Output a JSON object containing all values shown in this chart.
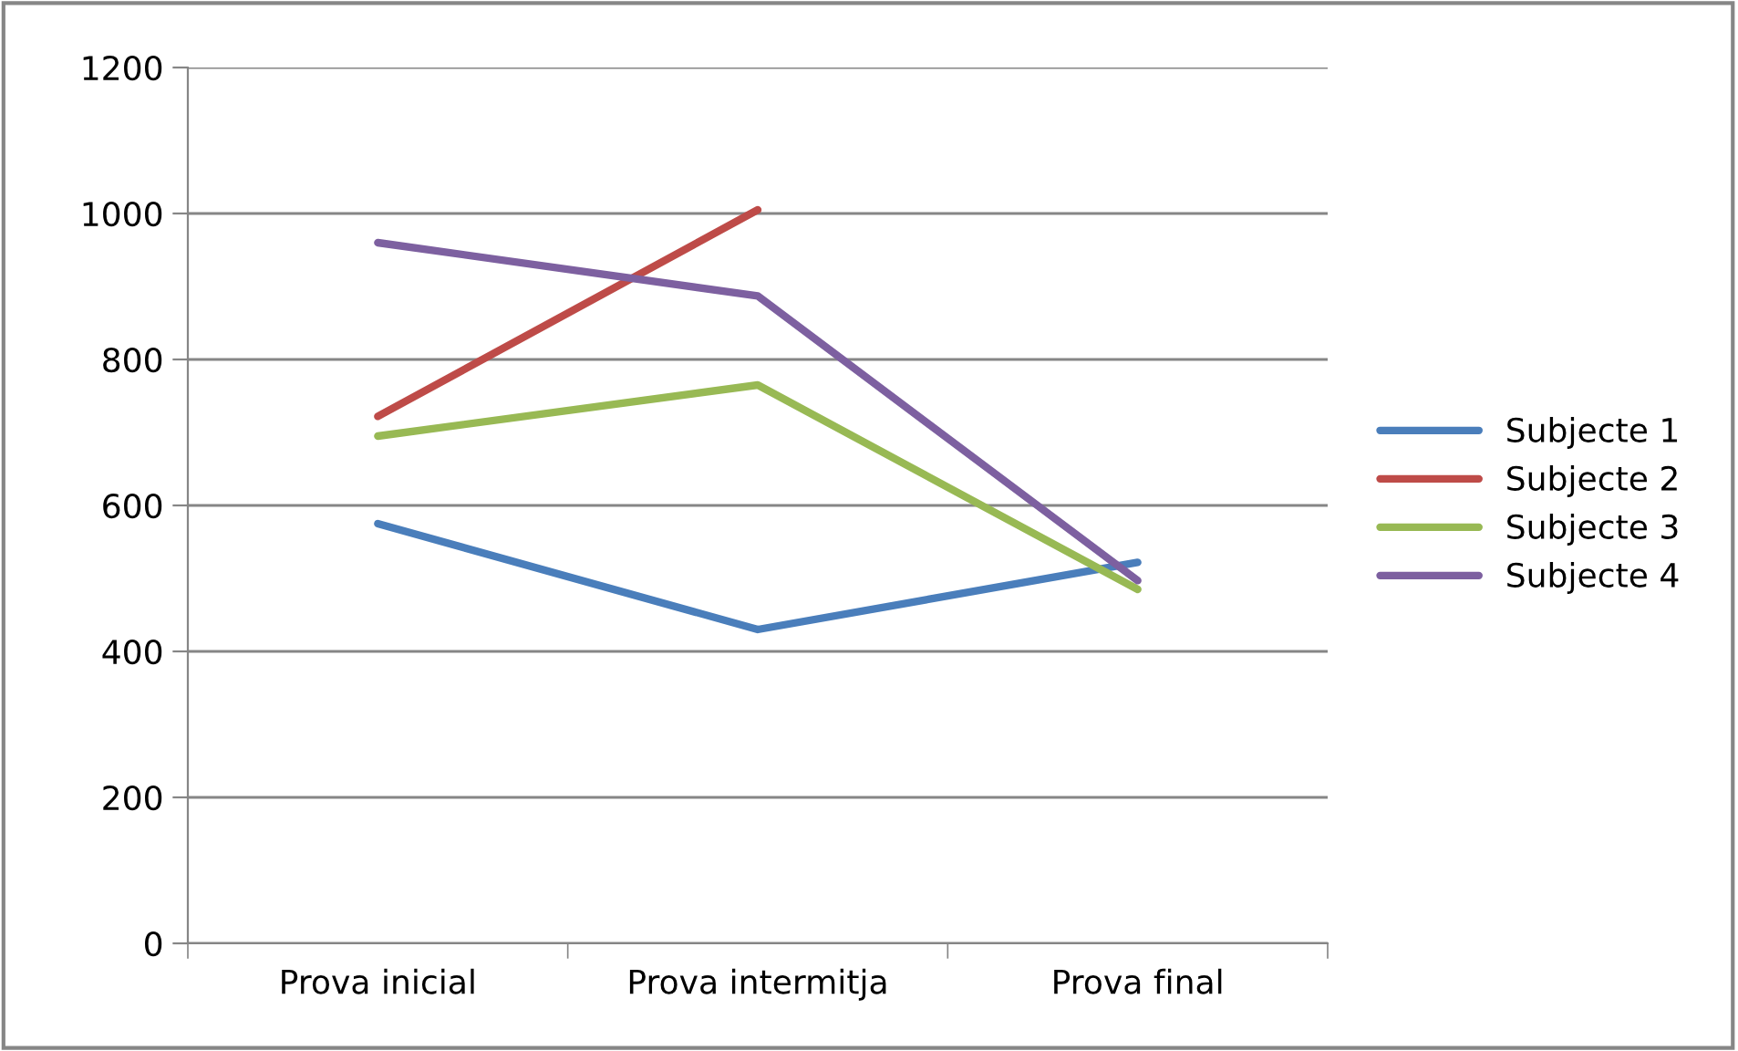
{
  "chart_data": {
    "type": "line",
    "categories": [
      "Prova inicial",
      "Prova intermitja",
      "Prova final"
    ],
    "series": [
      {
        "name": "Subjecte 1",
        "color": "#4a7ebb",
        "values": [
          575,
          430,
          522
        ]
      },
      {
        "name": "Subjecte 2",
        "color": "#be4b48",
        "values": [
          722,
          1005,
          null
        ]
      },
      {
        "name": "Subjecte 3",
        "color": "#98b954",
        "values": [
          695,
          765,
          485
        ]
      },
      {
        "name": "Subjecte 4",
        "color": "#7d60a0",
        "values": [
          960,
          887,
          497
        ]
      }
    ],
    "ylim": [
      0,
      1200
    ],
    "yticks": [
      0,
      200,
      400,
      600,
      800,
      1000,
      1200
    ],
    "grid": "y",
    "legend": "right",
    "marker": "none",
    "line_style": "solid"
  }
}
